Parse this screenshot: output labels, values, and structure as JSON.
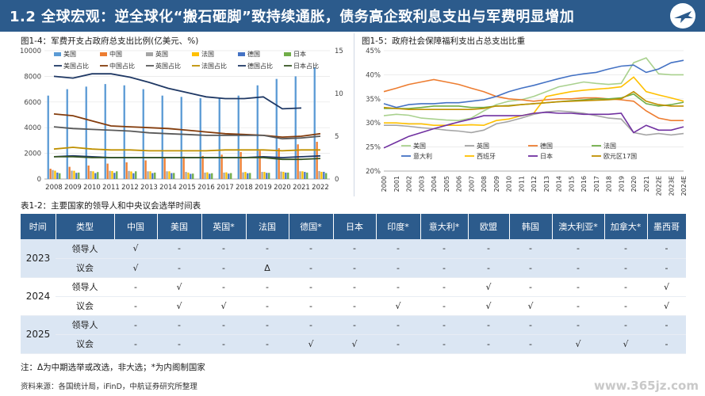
{
  "header": {
    "title": "1.2 全球宏观：逆全球化“搬石砸脚”致持续通胀，债务高企致利息支出与军费明显增加"
  },
  "chart_data": [
    {
      "type": "bar",
      "title": "图1-4：军费开支占政府总支出比例(亿美元、%)",
      "categories": [
        "2008",
        "2009",
        "2010",
        "2011",
        "2012",
        "2013",
        "2014",
        "2015",
        "2016",
        "2017",
        "2018",
        "2019",
        "2020",
        "2021",
        "2022"
      ],
      "ylim": [
        0,
        10000
      ],
      "yticks": [
        0,
        2000,
        4000,
        6000,
        8000,
        10000
      ],
      "y2lim": [
        0,
        15
      ],
      "y2ticks": [
        0,
        5,
        10,
        15
      ],
      "series": [
        {
          "name": "美国",
          "color": "#5b9bd5",
          "values": [
            6500,
            7000,
            7200,
            7400,
            7300,
            7000,
            6500,
            6400,
            6300,
            6300,
            6500,
            7300,
            7800,
            8000,
            8700
          ]
        },
        {
          "name": "中国",
          "color": "#ed7d31",
          "values": [
            800,
            950,
            1050,
            1200,
            1300,
            1450,
            1600,
            1750,
            1800,
            1900,
            2100,
            2200,
            2400,
            2700,
            2900
          ]
        },
        {
          "name": "英国",
          "color": "#a5a5a5",
          "values": [
            700,
            650,
            620,
            640,
            630,
            600,
            600,
            550,
            500,
            500,
            520,
            550,
            580,
            600,
            620
          ]
        },
        {
          "name": "法国",
          "color": "#ffc000",
          "values": [
            650,
            640,
            600,
            620,
            590,
            600,
            600,
            500,
            520,
            520,
            550,
            550,
            560,
            600,
            560
          ]
        },
        {
          "name": "德国",
          "color": "#4472c4",
          "values": [
            500,
            480,
            460,
            480,
            450,
            460,
            460,
            400,
            410,
            420,
            450,
            480,
            500,
            550,
            560
          ]
        },
        {
          "name": "日本",
          "color": "#70ad47",
          "values": [
            450,
            500,
            540,
            600,
            600,
            500,
            470,
            420,
            450,
            460,
            470,
            480,
            500,
            500,
            460
          ]
        }
      ],
      "lines": [
        {
          "name": "美国占比",
          "color": "#1f3864",
          "values": [
            12.0,
            11.8,
            12.3,
            12.3,
            11.9,
            11.3,
            10.6,
            10.1,
            9.6,
            9.4,
            9.4,
            9.6,
            8.2,
            8.3,
            null
          ]
        },
        {
          "name": "中国占比",
          "color": "#843c0c",
          "values": [
            7.6,
            7.4,
            6.8,
            6.2,
            6.1,
            6.0,
            5.9,
            5.7,
            5.5,
            5.3,
            5.2,
            5.1,
            4.9,
            5.0,
            5.3
          ]
        },
        {
          "name": "英国占比",
          "color": "#595959",
          "values": [
            6.1,
            5.9,
            5.8,
            5.7,
            5.6,
            5.4,
            5.3,
            5.2,
            5.1,
            5.1,
            5.1,
            5.1,
            4.7,
            4.8,
            5.0
          ]
        },
        {
          "name": "法国占比",
          "color": "#bf9000",
          "values": [
            3.5,
            3.7,
            3.5,
            3.4,
            3.4,
            3.3,
            3.3,
            3.3,
            3.3,
            3.4,
            3.4,
            3.4,
            3.3,
            3.4,
            3.4
          ]
        },
        {
          "name": "德国占比",
          "color": "#203864",
          "values": [
            2.6,
            2.7,
            2.6,
            2.5,
            2.5,
            2.5,
            2.5,
            2.5,
            2.5,
            2.5,
            2.5,
            2.6,
            2.5,
            2.6,
            2.7
          ]
        },
        {
          "name": "日本占比",
          "color": "#375623",
          "values": [
            2.6,
            2.6,
            2.5,
            2.5,
            2.5,
            2.5,
            2.5,
            2.5,
            2.5,
            2.5,
            2.5,
            2.5,
            2.3,
            2.3,
            2.4
          ]
        }
      ]
    },
    {
      "type": "line",
      "title": "图1-5：政府社会保障福利支出占总支出比重",
      "x": [
        "2000",
        "2001",
        "2002",
        "2003",
        "2004",
        "2005",
        "2006",
        "2007",
        "2008",
        "2009",
        "2010",
        "2011",
        "2012",
        "2013",
        "2014",
        "2015",
        "2016",
        "2017",
        "2018",
        "2019",
        "2020",
        "2021",
        "2022E",
        "2023E",
        "2024E"
      ],
      "ylim": [
        20,
        45
      ],
      "yticks": [
        "20%",
        "25%",
        "30%",
        "35%",
        "40%",
        "45%"
      ],
      "series": [
        {
          "name": "美国",
          "color": "#a9d18e",
          "values": [
            31.5,
            31.8,
            31.6,
            31.0,
            30.8,
            30.6,
            30.5,
            31.0,
            32.5,
            33.8,
            34.5,
            34.8,
            35.5,
            36.5,
            37.5,
            38.0,
            38.5,
            38.2,
            38.0,
            38.2,
            42.5,
            43.5,
            40.2,
            40.0,
            40.0
          ]
        },
        {
          "name": "英国",
          "color": "#a5a5a5",
          "values": [
            29.5,
            29.5,
            29.3,
            29.0,
            28.8,
            28.5,
            28.3,
            28.0,
            28.5,
            29.8,
            30.3,
            31.0,
            31.8,
            32.3,
            32.5,
            32.3,
            32.0,
            31.5,
            31.0,
            30.8,
            28.0,
            27.5,
            27.8,
            27.5,
            27.8
          ]
        },
        {
          "name": "德国",
          "color": "#ed7d31",
          "values": [
            36.5,
            37.2,
            38.0,
            38.5,
            39.0,
            38.5,
            38.0,
            37.2,
            36.5,
            35.5,
            35.0,
            34.8,
            34.5,
            34.8,
            35.0,
            35.0,
            35.2,
            35.2,
            35.0,
            34.8,
            34.5,
            32.5,
            31.0,
            30.5,
            30.5
          ]
        },
        {
          "name": "法国",
          "color": "#70ad47",
          "values": [
            33.0,
            33.0,
            33.0,
            33.2,
            33.5,
            33.5,
            33.5,
            33.2,
            33.2,
            33.5,
            33.6,
            33.8,
            34.0,
            34.2,
            34.4,
            34.6,
            34.8,
            35.0,
            35.0,
            35.2,
            36.0,
            34.0,
            33.5,
            33.8,
            34.3
          ]
        },
        {
          "name": "意大利",
          "color": "#4472c4",
          "values": [
            34.0,
            33.2,
            33.8,
            34.0,
            34.0,
            34.2,
            34.2,
            34.5,
            34.8,
            35.5,
            36.5,
            37.2,
            37.8,
            38.5,
            39.2,
            39.8,
            40.2,
            40.5,
            41.2,
            41.8,
            42.0,
            40.5,
            41.2,
            42.5,
            43.0
          ]
        },
        {
          "name": "西班牙",
          "color": "#ffc000",
          "values": [
            30.0,
            30.0,
            29.8,
            29.8,
            29.5,
            29.5,
            29.5,
            29.6,
            29.5,
            30.5,
            30.8,
            31.5,
            32.0,
            35.5,
            36.0,
            36.5,
            36.8,
            37.0,
            37.2,
            37.5,
            39.5,
            36.5,
            35.8,
            35.2,
            34.5
          ]
        },
        {
          "name": "日本",
          "color": "#7030a0",
          "values": [
            24.8,
            26.0,
            27.2,
            28.0,
            28.8,
            29.5,
            30.2,
            30.8,
            31.5,
            31.5,
            31.5,
            31.5,
            32.0,
            32.2,
            32.0,
            32.0,
            31.8,
            31.8,
            31.8,
            32.0,
            28.0,
            29.5,
            28.5,
            28.5,
            29.2
          ]
        },
        {
          "name": "欧元区17国",
          "color": "#bf9000",
          "values": [
            33.2,
            33.0,
            32.8,
            32.8,
            32.8,
            32.8,
            32.8,
            32.8,
            33.0,
            33.5,
            33.5,
            33.8,
            34.0,
            34.2,
            34.4,
            34.5,
            34.6,
            34.7,
            34.8,
            35.0,
            36.5,
            34.5,
            33.8,
            33.5,
            33.5
          ]
        }
      ]
    }
  ],
  "table": {
    "title": "表1-2：主要国家的领导人和中央议会选举时间表",
    "headers": [
      "时间",
      "类型",
      "中国",
      "美国",
      "英国*",
      "法国",
      "德国*",
      "日本",
      "印度*",
      "意大利*",
      "欧盟",
      "韩国",
      "澳大利亚*",
      "加拿大*",
      "墨西哥"
    ],
    "groups": [
      {
        "year": "2023",
        "rows": [
          {
            "type": "领导人",
            "cells": [
              "√",
              "-",
              "-",
              "-",
              "-",
              "-",
              "-",
              "-",
              "-",
              "-",
              "-",
              "-",
              "-"
            ]
          },
          {
            "type": "议会",
            "cells": [
              "√",
              "-",
              "-",
              "Δ",
              "-",
              "-",
              "-",
              "-",
              "-",
              "-",
              "-",
              "-",
              "-"
            ]
          }
        ]
      },
      {
        "year": "2024",
        "rows": [
          {
            "type": "领导人",
            "cells": [
              "-",
              "√",
              "-",
              "-",
              "-",
              "-",
              "-",
              "-",
              "√",
              "-",
              "-",
              "-",
              "√"
            ]
          },
          {
            "type": "议会",
            "cells": [
              "-",
              "√",
              "√",
              "-",
              "-",
              "-",
              "√",
              "-",
              "√",
              "√",
              "-",
              "-",
              "√"
            ]
          }
        ]
      },
      {
        "year": "2025",
        "rows": [
          {
            "type": "领导人",
            "cells": [
              "-",
              "-",
              "-",
              "-",
              "-",
              "-",
              "-",
              "-",
              "-",
              "-",
              "-",
              "-",
              "-"
            ]
          },
          {
            "type": "议会",
            "cells": [
              "-",
              "-",
              "-",
              "-",
              "√",
              "√",
              "-",
              "-",
              "-",
              "-",
              "√",
              "√",
              "-"
            ]
          }
        ]
      }
    ]
  },
  "note": "注：Δ为中期选举或改选，非大选；*为内阁制国家",
  "source": "资料来源：各国统计局，iFinD，中航证券研究所整理",
  "watermark": "www.365jz.com",
  "colors": {
    "header_bg": "#2c5b8c",
    "table_shade": "#dbe6f3"
  }
}
